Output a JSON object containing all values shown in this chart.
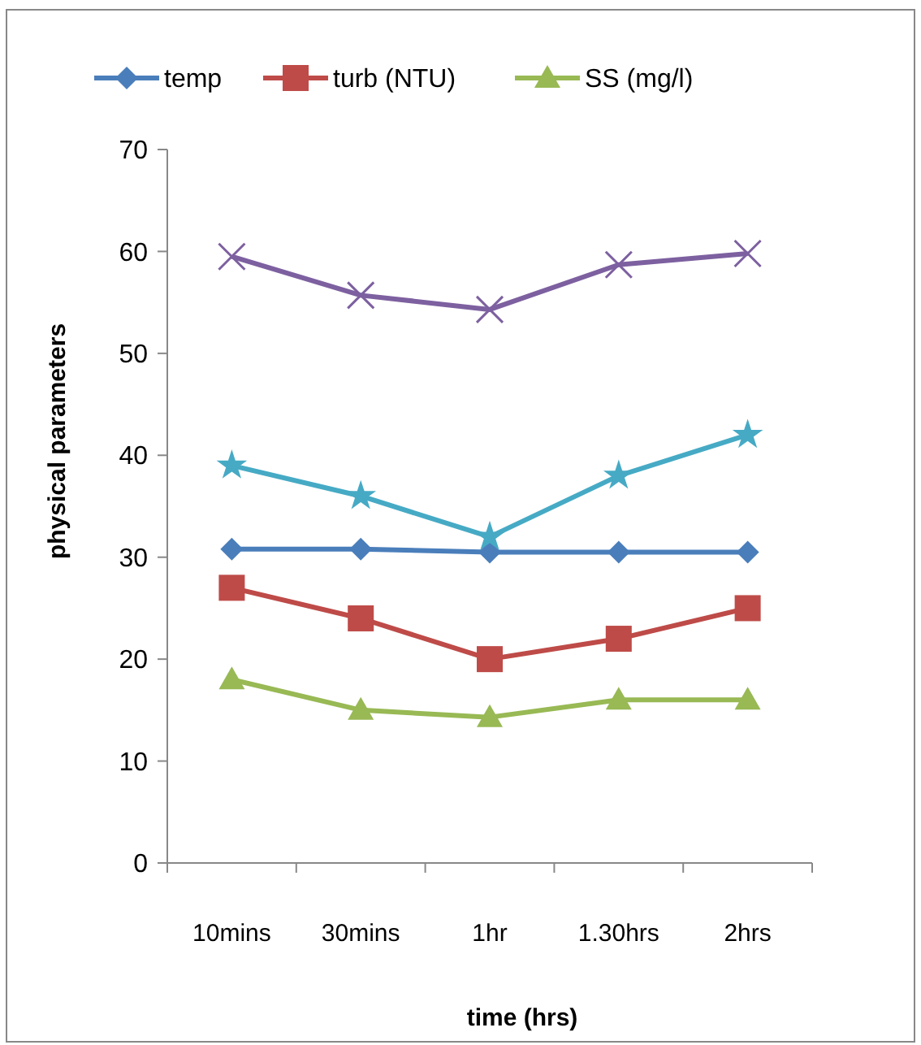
{
  "chart_data": {
    "type": "line",
    "xlabel": "time (hrs)",
    "ylabel": "physical parameters",
    "categories": [
      "10mins",
      "30mins",
      "1hr",
      "1.30hrs",
      "2hrs"
    ],
    "ylim": [
      0,
      70
    ],
    "yticks": [
      0,
      10,
      20,
      30,
      40,
      50,
      60,
      70
    ],
    "grid": false,
    "legend": "top left",
    "series": [
      {
        "name": "temp",
        "color": "#4a7ebb",
        "marker": "diamond",
        "values": [
          30.8,
          30.8,
          30.5,
          30.5,
          30.5
        ]
      },
      {
        "name": "turb (NTU)",
        "color": "#be4b48",
        "marker": "square",
        "values": [
          27,
          24,
          20,
          22,
          25
        ]
      },
      {
        "name": "SS (mg/l)",
        "color": "#98b954",
        "marker": "triangle",
        "values": [
          18,
          15,
          14.3,
          16,
          16
        ]
      },
      {
        "color": "#7d60a0",
        "marker": "cross",
        "values": [
          59.5,
          55.7,
          54.3,
          58.7,
          59.8
        ]
      },
      {
        "color": "#46aac5",
        "marker": "star",
        "values": [
          39,
          36,
          32,
          38,
          42
        ]
      }
    ]
  }
}
